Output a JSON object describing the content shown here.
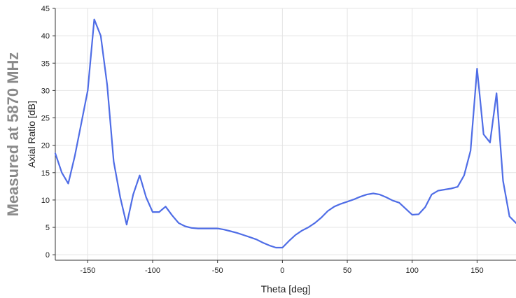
{
  "side_title": "Measured at 5870 MHz",
  "chart_data": {
    "type": "line",
    "xlabel": "Theta [deg]",
    "ylabel": "Axial Ratio [dB]",
    "xlim": [
      -175,
      180
    ],
    "ylim": [
      -1,
      45
    ],
    "xticks": [
      -150,
      -100,
      -50,
      0,
      50,
      100,
      150
    ],
    "yticks": [
      0,
      5,
      10,
      15,
      20,
      25,
      30,
      35,
      40,
      45
    ],
    "grid": true,
    "line_color": "#4f6de6",
    "series": [
      {
        "x": [
          -175,
          -170,
          -165,
          -160,
          -155,
          -150,
          -145,
          -140,
          -135,
          -130,
          -125,
          -120,
          -115,
          -110,
          -105,
          -100,
          -95,
          -90,
          -85,
          -80,
          -75,
          -70,
          -65,
          -60,
          -55,
          -50,
          -45,
          -40,
          -35,
          -30,
          -25,
          -20,
          -15,
          -10,
          -5,
          0,
          5,
          10,
          15,
          20,
          25,
          30,
          35,
          40,
          45,
          50,
          55,
          60,
          65,
          70,
          75,
          80,
          85,
          90,
          95,
          100,
          105,
          110,
          115,
          120,
          125,
          130,
          135,
          140,
          145,
          150,
          155,
          160,
          165,
          170,
          175,
          180
        ],
        "y": [
          18.5,
          15,
          13,
          18,
          24,
          30,
          43,
          40,
          31,
          17,
          10.5,
          5.5,
          11,
          14.5,
          10.5,
          7.8,
          7.8,
          8.8,
          7.2,
          5.8,
          5.2,
          4.9,
          4.8,
          4.8,
          4.8,
          4.8,
          4.6,
          4.3,
          4.0,
          3.6,
          3.2,
          2.8,
          2.2,
          1.7,
          1.3,
          1.3,
          2.5,
          3.6,
          4.4,
          5.0,
          5.8,
          6.8,
          8.0,
          8.8,
          9.3,
          9.7,
          10.1,
          10.6,
          11.0,
          11.2,
          11.0,
          10.5,
          9.9,
          9.5,
          8.4,
          7.3,
          7.4,
          8.7,
          11.0,
          11.7,
          11.9,
          12.1,
          12.4,
          14.5,
          19.0,
          34.0,
          22.0,
          20.5,
          29.5,
          13.5,
          7.0,
          5.8
        ]
      }
    ]
  }
}
